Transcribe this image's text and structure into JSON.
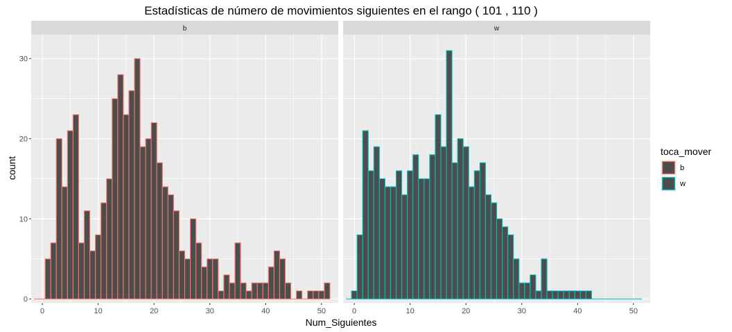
{
  "chart_data": {
    "type": "bar",
    "title": "Estadísticas de número de movimientos siguientes en el rango ( 101 , 110 )",
    "xlabel": "Num_Siguientes",
    "ylabel": "count",
    "xlim": [
      -2,
      53
    ],
    "ylim": [
      -0.5,
      33
    ],
    "x_ticks": [
      0,
      10,
      20,
      30,
      40,
      50
    ],
    "y_ticks": [
      0,
      10,
      20,
      30
    ],
    "bin_width": 1,
    "panels": [
      {
        "label": "b",
        "color": "#F8766D",
        "x": [
          -1,
          0,
          1,
          2,
          3,
          4,
          5,
          6,
          7,
          8,
          9,
          10,
          11,
          12,
          13,
          14,
          15,
          16,
          17,
          18,
          19,
          20,
          21,
          22,
          23,
          24,
          25,
          26,
          27,
          28,
          29,
          30,
          31,
          32,
          33,
          34,
          35,
          36,
          37,
          38,
          39,
          40,
          41,
          42,
          43,
          44,
          45,
          46,
          47,
          48,
          49,
          50,
          51
        ],
        "values": [
          0,
          0,
          5,
          7,
          20,
          14,
          21,
          23,
          7,
          11,
          6,
          8,
          12,
          15,
          25,
          28,
          23,
          26,
          30,
          19,
          20,
          22,
          17,
          14,
          13,
          11,
          6,
          5,
          10,
          7,
          4,
          5,
          5,
          1,
          3,
          2,
          7,
          2,
          1,
          2,
          2,
          2,
          4,
          6,
          5,
          2,
          0,
          1,
          0,
          1,
          1,
          1,
          2
        ]
      },
      {
        "label": "w",
        "color": "#00BFC4",
        "x": [
          -1,
          0,
          1,
          2,
          3,
          4,
          5,
          6,
          7,
          8,
          9,
          10,
          11,
          12,
          13,
          14,
          15,
          16,
          17,
          18,
          19,
          20,
          21,
          22,
          23,
          24,
          25,
          26,
          27,
          28,
          29,
          30,
          31,
          32,
          33,
          34,
          35,
          36,
          37,
          38,
          39,
          40,
          41,
          42,
          43,
          44,
          45,
          46,
          47,
          48,
          49,
          50,
          51
        ],
        "values": [
          0,
          1,
          8,
          21,
          16,
          19,
          15,
          14,
          14,
          16,
          13,
          16,
          18,
          15,
          15,
          18,
          23,
          19,
          31,
          17,
          20,
          19,
          14,
          16,
          17,
          13,
          12,
          10,
          9,
          8,
          5,
          2,
          2,
          3,
          1,
          5,
          1,
          1,
          1,
          1,
          1,
          1,
          1,
          1,
          0,
          0,
          0,
          0,
          0,
          0,
          0,
          0,
          0
        ]
      }
    ],
    "legend": {
      "title": "toca_mover",
      "position": "right",
      "entries": [
        {
          "label": "b",
          "color": "#F8766D"
        },
        {
          "label": "w",
          "color": "#00BFC4"
        }
      ]
    },
    "fill_color": "#4D4D4D",
    "panel_bg": "#EBEBEB",
    "strip_bg": "#D9D9D9",
    "grid": true
  }
}
